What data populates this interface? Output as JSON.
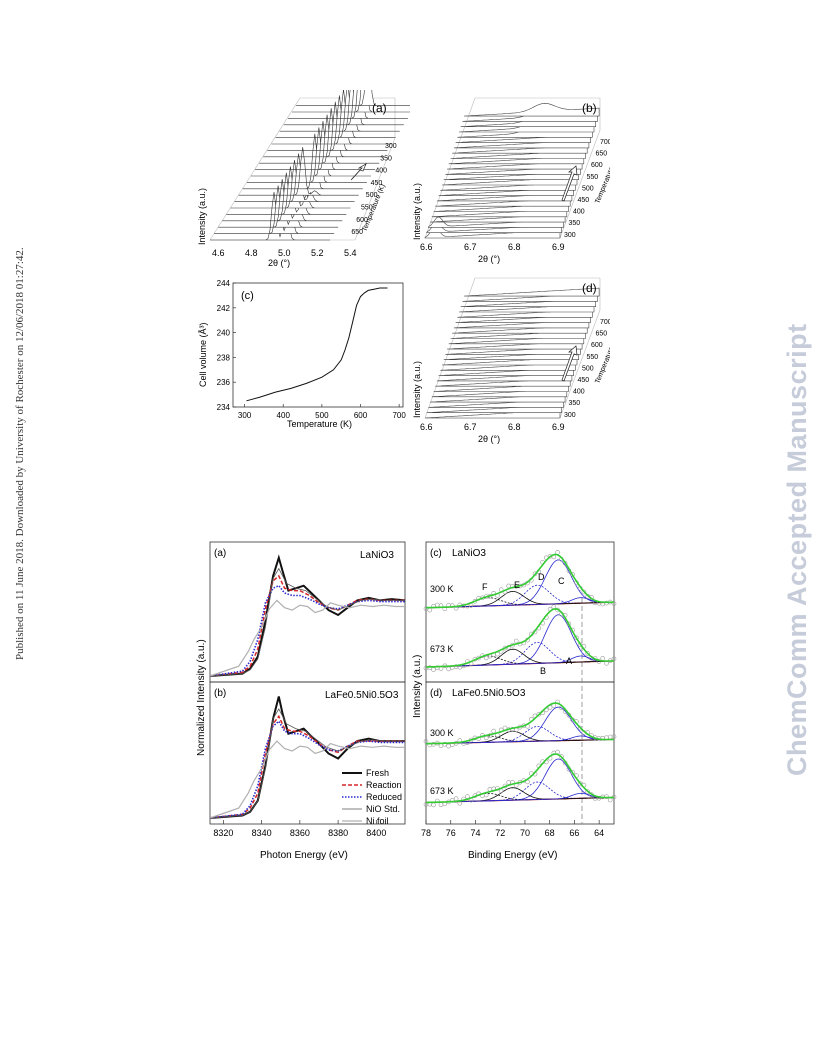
{
  "side_text": "Published on 11 June 2018. Downloaded by University of Rochester on 12/06/2018 01:27:42.",
  "watermark": "ChemComm Accepted Manuscript",
  "figure1": {
    "panel_a": {
      "label": "(a)",
      "xlabel": "2θ (°)",
      "ylabel": "Intensity (a.u.)",
      "x_ticks": [
        "4.6",
        "4.8",
        "5.0",
        "5.2",
        "5.4"
      ],
      "temp_label": "Temperature (K)",
      "temp_ticks": [
        "300",
        "350",
        "400",
        "450",
        "500",
        "550",
        "600",
        "650"
      ]
    },
    "panel_b": {
      "label": "(b)",
      "xlabel": "2θ (°)",
      "ylabel": "Intensity (a.u.)",
      "x_ticks": [
        "6.6",
        "6.7",
        "6.8",
        "6.9"
      ],
      "temp_label": "Temperature (K)",
      "temp_ticks": [
        "700",
        "650",
        "600",
        "550",
        "500",
        "450",
        "400",
        "350",
        "300"
      ]
    },
    "panel_d": {
      "label": "(d)",
      "xlabel": "2θ (°)",
      "ylabel": "Intensity (a.u.)",
      "x_ticks": [
        "6.6",
        "6.7",
        "6.8",
        "6.9"
      ],
      "temp_label": "Temperature (K)",
      "temp_ticks": [
        "700",
        "650",
        "600",
        "550",
        "500",
        "450",
        "400",
        "350",
        "300"
      ]
    }
  },
  "chart_data": [
    {
      "type": "line",
      "panel": "(c)",
      "xlabel": "Temperature (K)",
      "ylabel": "Cell volume (Å³)",
      "xlim": [
        270,
        710
      ],
      "ylim": [
        234,
        244
      ],
      "x_ticks": [
        300,
        400,
        500,
        600,
        700
      ],
      "y_ticks": [
        234,
        236,
        238,
        240,
        242,
        244
      ],
      "series": [
        {
          "x": [
            305,
            340,
            380,
            420,
            460,
            500,
            530,
            550,
            560,
            570,
            580,
            590,
            600,
            610,
            620,
            635,
            650,
            670
          ],
          "values": [
            234.5,
            234.8,
            235.2,
            235.5,
            235.9,
            236.4,
            237.0,
            237.8,
            238.6,
            239.6,
            240.9,
            242.2,
            242.9,
            243.2,
            243.4,
            243.5,
            243.6,
            243.6
          ]
        }
      ]
    },
    {
      "type": "line",
      "panel": "(a)",
      "title": "LaNiO3",
      "xlabel": "Photon Energy (eV)",
      "ylabel": "Normalized Intensity (a.u.)",
      "xlim": [
        8313,
        8415
      ],
      "x_ticks": [
        8320,
        8340,
        8360,
        8380,
        8400
      ],
      "series": [
        {
          "name": "Fresh",
          "x": [
            8313,
            8330,
            8334,
            8338,
            8342,
            8346,
            8349,
            8351,
            8354,
            8358,
            8362,
            8366,
            8370,
            8375,
            8380,
            8385,
            8390,
            8396,
            8402,
            8408,
            8415
          ],
          "values": [
            0.0,
            0.02,
            0.06,
            0.16,
            0.45,
            0.82,
            0.97,
            0.86,
            0.7,
            0.72,
            0.74,
            0.68,
            0.62,
            0.54,
            0.5,
            0.56,
            0.62,
            0.64,
            0.62,
            0.63,
            0.62
          ]
        },
        {
          "name": "Reaction",
          "x": [
            8313,
            8330,
            8334,
            8338,
            8342,
            8346,
            8349,
            8352,
            8356,
            8360,
            8365,
            8370,
            8375,
            8380,
            8385,
            8390,
            8396,
            8402,
            8408,
            8415
          ],
          "values": [
            0.0,
            0.03,
            0.08,
            0.22,
            0.55,
            0.78,
            0.82,
            0.72,
            0.7,
            0.7,
            0.66,
            0.6,
            0.56,
            0.54,
            0.58,
            0.62,
            0.63,
            0.62,
            0.62,
            0.62
          ]
        },
        {
          "name": "Reduced",
          "x": [
            8313,
            8330,
            8334,
            8338,
            8342,
            8346,
            8349,
            8352,
            8356,
            8360,
            8365,
            8370,
            8375,
            8380,
            8385,
            8390,
            8396,
            8402,
            8408,
            8415
          ],
          "values": [
            0.0,
            0.04,
            0.12,
            0.3,
            0.6,
            0.72,
            0.74,
            0.68,
            0.66,
            0.66,
            0.63,
            0.59,
            0.56,
            0.55,
            0.58,
            0.61,
            0.62,
            0.61,
            0.61,
            0.61
          ]
        },
        {
          "name": "NiO Std.",
          "x": [
            8313,
            8330,
            8334,
            8338,
            8342,
            8346,
            8349,
            8353,
            8358,
            8363,
            8368,
            8374,
            8380,
            8386,
            8392,
            8398,
            8404,
            8410,
            8415
          ],
          "values": [
            0.0,
            0.02,
            0.05,
            0.14,
            0.4,
            0.8,
            0.88,
            0.76,
            0.72,
            0.7,
            0.64,
            0.57,
            0.54,
            0.58,
            0.62,
            0.63,
            0.62,
            0.62,
            0.62
          ]
        },
        {
          "name": "Ni foil",
          "x": [
            8313,
            8328,
            8333,
            8336,
            8340,
            8344,
            8348,
            8352,
            8356,
            8360,
            8364,
            8368,
            8372,
            8376,
            8380,
            8386,
            8392,
            8398,
            8404,
            8410,
            8415
          ],
          "values": [
            0.0,
            0.08,
            0.2,
            0.3,
            0.4,
            0.55,
            0.62,
            0.56,
            0.54,
            0.58,
            0.57,
            0.52,
            0.54,
            0.6,
            0.58,
            0.56,
            0.58,
            0.57,
            0.58,
            0.57,
            0.57
          ]
        }
      ]
    },
    {
      "type": "line",
      "panel": "(b)",
      "title": "LaFe0.5Ni0.5O3",
      "xlabel": "Photon Energy (eV)",
      "ylabel": "Normalized Intensity (a.u.)",
      "xlim": [
        8313,
        8415
      ],
      "x_ticks": [
        8320,
        8340,
        8360,
        8380,
        8400
      ],
      "series": [
        {
          "name": "Fresh",
          "x": [
            8313,
            8330,
            8334,
            8338,
            8342,
            8346,
            8349,
            8351,
            8354,
            8358,
            8362,
            8366,
            8370,
            8375,
            8380,
            8385,
            8390,
            8396,
            8402,
            8408,
            8415
          ],
          "values": [
            0.0,
            0.02,
            0.05,
            0.14,
            0.42,
            0.8,
            0.98,
            0.84,
            0.68,
            0.7,
            0.72,
            0.66,
            0.6,
            0.52,
            0.48,
            0.56,
            0.62,
            0.64,
            0.62,
            0.62,
            0.62
          ]
        },
        {
          "name": "Reaction",
          "x": [
            8313,
            8330,
            8334,
            8338,
            8342,
            8346,
            8349,
            8352,
            8356,
            8360,
            8365,
            8370,
            8375,
            8380,
            8385,
            8390,
            8396,
            8402,
            8408,
            8415
          ],
          "values": [
            0.0,
            0.03,
            0.08,
            0.2,
            0.52,
            0.76,
            0.82,
            0.72,
            0.7,
            0.7,
            0.66,
            0.6,
            0.55,
            0.53,
            0.58,
            0.62,
            0.62,
            0.62,
            0.62,
            0.62
          ]
        },
        {
          "name": "Reduced",
          "x": [
            8313,
            8330,
            8334,
            8338,
            8342,
            8346,
            8349,
            8352,
            8356,
            8360,
            8365,
            8370,
            8375,
            8380,
            8385,
            8390,
            8396,
            8402,
            8408,
            8415
          ],
          "values": [
            0.0,
            0.03,
            0.1,
            0.26,
            0.56,
            0.74,
            0.78,
            0.7,
            0.68,
            0.68,
            0.64,
            0.59,
            0.55,
            0.54,
            0.58,
            0.61,
            0.62,
            0.61,
            0.61,
            0.61
          ]
        },
        {
          "name": "NiO Std.",
          "x": [
            8313,
            8330,
            8334,
            8338,
            8342,
            8346,
            8349,
            8353,
            8358,
            8363,
            8368,
            8374,
            8380,
            8386,
            8392,
            8398,
            8404,
            8410,
            8415
          ],
          "values": [
            0.0,
            0.02,
            0.05,
            0.14,
            0.4,
            0.8,
            0.88,
            0.76,
            0.72,
            0.7,
            0.64,
            0.57,
            0.54,
            0.58,
            0.62,
            0.63,
            0.62,
            0.62,
            0.62
          ]
        },
        {
          "name": "Ni foil",
          "x": [
            8313,
            8328,
            8333,
            8336,
            8340,
            8344,
            8348,
            8352,
            8356,
            8360,
            8364,
            8368,
            8372,
            8376,
            8380,
            8386,
            8392,
            8398,
            8404,
            8410,
            8415
          ],
          "values": [
            0.0,
            0.08,
            0.2,
            0.3,
            0.4,
            0.55,
            0.62,
            0.56,
            0.54,
            0.58,
            0.57,
            0.52,
            0.54,
            0.6,
            0.58,
            0.56,
            0.58,
            0.57,
            0.58,
            0.57,
            0.57
          ]
        }
      ],
      "legend": [
        "Fresh",
        "Reaction",
        "Reduced",
        "NiO Std.",
        "Ni foil"
      ]
    },
    {
      "type": "line",
      "panel": "(c)",
      "title": "LaNiO3",
      "xlabel": "Binding Energy (eV)",
      "ylabel": "Intensity (a.u.)",
      "xlim": [
        78,
        62.8
      ],
      "x_ticks": [
        78,
        76,
        74,
        72,
        70,
        68,
        66,
        64
      ],
      "annotations": [
        "300 K",
        "673 K",
        "A",
        "B",
        "C",
        "D",
        "E",
        "F"
      ]
    },
    {
      "type": "line",
      "panel": "(d)",
      "title": "LaFe0.5Ni0.5O3",
      "xlabel": "Binding Energy (eV)",
      "ylabel": "Intensity (a.u.)",
      "xlim": [
        78,
        62.8
      ],
      "x_ticks": [
        78,
        76,
        74,
        72,
        70,
        68,
        66,
        64
      ],
      "annotations": [
        "300 K",
        "673 K"
      ]
    }
  ],
  "legend_colors": {
    "Fresh": "#111111",
    "Reaction": "#d62728",
    "Reduced": "#2a2ad0",
    "NiO Std.": "#555555",
    "Ni foil": "#b0b0b0"
  }
}
